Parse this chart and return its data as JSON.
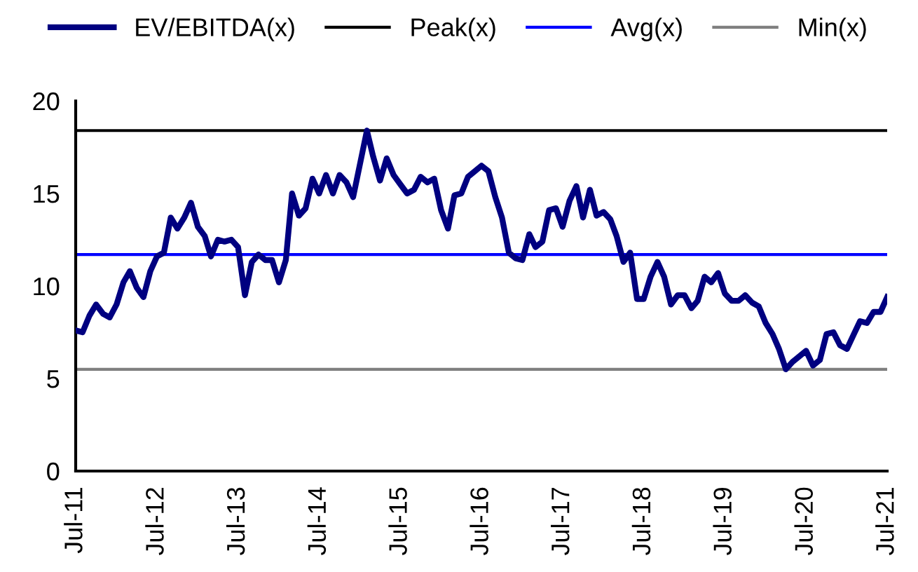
{
  "chart_data": {
    "type": "line",
    "x": [
      "2011-07",
      "2011-08",
      "2011-09",
      "2011-10",
      "2011-11",
      "2011-12",
      "2012-01",
      "2012-02",
      "2012-03",
      "2012-04",
      "2012-05",
      "2012-06",
      "2012-07",
      "2012-08",
      "2012-09",
      "2012-10",
      "2012-11",
      "2012-12",
      "2013-01",
      "2013-02",
      "2013-03",
      "2013-04",
      "2013-05",
      "2013-06",
      "2013-07",
      "2013-08",
      "2013-09",
      "2013-10",
      "2013-11",
      "2013-12",
      "2014-01",
      "2014-02",
      "2014-03",
      "2014-04",
      "2014-05",
      "2014-06",
      "2014-07",
      "2014-08",
      "2014-09",
      "2014-10",
      "2014-11",
      "2014-12",
      "2015-01",
      "2015-02",
      "2015-03",
      "2015-04",
      "2015-05",
      "2015-06",
      "2015-07",
      "2015-08",
      "2015-09",
      "2015-10",
      "2015-11",
      "2015-12",
      "2016-01",
      "2016-02",
      "2016-03",
      "2016-04",
      "2016-05",
      "2016-06",
      "2016-07",
      "2016-08",
      "2016-09",
      "2016-10",
      "2016-11",
      "2016-12",
      "2017-01",
      "2017-02",
      "2017-03",
      "2017-04",
      "2017-05",
      "2017-06",
      "2017-07",
      "2017-08",
      "2017-09",
      "2017-10",
      "2017-11",
      "2017-12",
      "2018-01",
      "2018-02",
      "2018-03",
      "2018-04",
      "2018-05",
      "2018-06",
      "2018-07",
      "2018-08",
      "2018-09",
      "2018-10",
      "2018-11",
      "2018-12",
      "2019-01",
      "2019-02",
      "2019-03",
      "2019-04",
      "2019-05",
      "2019-06",
      "2019-07",
      "2019-08",
      "2019-09",
      "2019-10",
      "2019-11",
      "2019-12",
      "2020-01",
      "2020-02",
      "2020-03",
      "2020-04",
      "2020-05",
      "2020-06",
      "2020-07",
      "2020-08",
      "2020-09",
      "2020-10",
      "2020-11",
      "2020-12",
      "2021-01",
      "2021-02",
      "2021-03",
      "2021-04",
      "2021-05",
      "2021-06",
      "2021-07"
    ],
    "series": [
      {
        "name": "EV/EBITDA(x)",
        "color": "#000080",
        "values": [
          7.6,
          7.5,
          8.4,
          9.0,
          8.5,
          8.3,
          9.0,
          10.2,
          10.8,
          9.9,
          9.4,
          10.8,
          11.6,
          11.8,
          13.7,
          13.1,
          13.7,
          14.5,
          13.2,
          12.7,
          11.6,
          12.5,
          12.4,
          12.5,
          12.1,
          9.5,
          11.3,
          11.7,
          11.4,
          11.4,
          10.2,
          11.4,
          15.0,
          13.8,
          14.2,
          15.8,
          15.0,
          16.0,
          15.0,
          16.0,
          15.6,
          14.8,
          16.6,
          18.4,
          17.0,
          15.7,
          16.9,
          16.0,
          15.5,
          15.0,
          15.2,
          15.9,
          15.6,
          15.8,
          14.1,
          13.1,
          14.9,
          15.0,
          15.9,
          16.2,
          16.5,
          16.2,
          14.8,
          13.7,
          11.8,
          11.5,
          11.4,
          12.8,
          12.1,
          12.4,
          14.1,
          14.2,
          13.2,
          14.6,
          15.4,
          13.7,
          15.2,
          13.8,
          14.0,
          13.6,
          12.7,
          11.3,
          11.8,
          9.3,
          9.3,
          10.5,
          11.3,
          10.5,
          9.0,
          9.5,
          9.5,
          8.8,
          9.2,
          10.5,
          10.2,
          10.7,
          9.6,
          9.2,
          9.2,
          9.5,
          9.1,
          8.9,
          8.0,
          7.4,
          6.6,
          5.5,
          5.9,
          6.2,
          6.5,
          5.7,
          6.0,
          7.4,
          7.5,
          6.8,
          6.6,
          7.4,
          8.1,
          8.0,
          8.6,
          8.6,
          9.4
        ]
      }
    ],
    "ref_lines": [
      {
        "axis": "y",
        "value": 18.4,
        "label": "Peak(x)",
        "color": "#000000"
      },
      {
        "axis": "y",
        "value": 11.7,
        "label": "Avg(x)",
        "color": "#0000ff"
      },
      {
        "axis": "y",
        "value": 5.5,
        "label": "Min(x)",
        "color": "#808080"
      }
    ],
    "xlim": [
      "2011-07",
      "2021-07"
    ],
    "xticks": [
      {
        "value": "2011-07",
        "label": "Jul-11"
      },
      {
        "value": "2012-07",
        "label": "Jul-12"
      },
      {
        "value": "2013-07",
        "label": "Jul-13"
      },
      {
        "value": "2014-07",
        "label": "Jul-14"
      },
      {
        "value": "2015-07",
        "label": "Jul-15"
      },
      {
        "value": "2016-07",
        "label": "Jul-16"
      },
      {
        "value": "2017-07",
        "label": "Jul-17"
      },
      {
        "value": "2018-07",
        "label": "Jul-18"
      },
      {
        "value": "2019-07",
        "label": "Jul-19"
      },
      {
        "value": "2020-07",
        "label": "Jul-20"
      },
      {
        "value": "2021-07",
        "label": "Jul-21"
      }
    ],
    "ylim": [
      0,
      20
    ],
    "yticks": [
      0,
      5,
      10,
      15,
      20
    ],
    "grid": false,
    "legend": "top",
    "marker": "none",
    "line_style": "solid"
  }
}
